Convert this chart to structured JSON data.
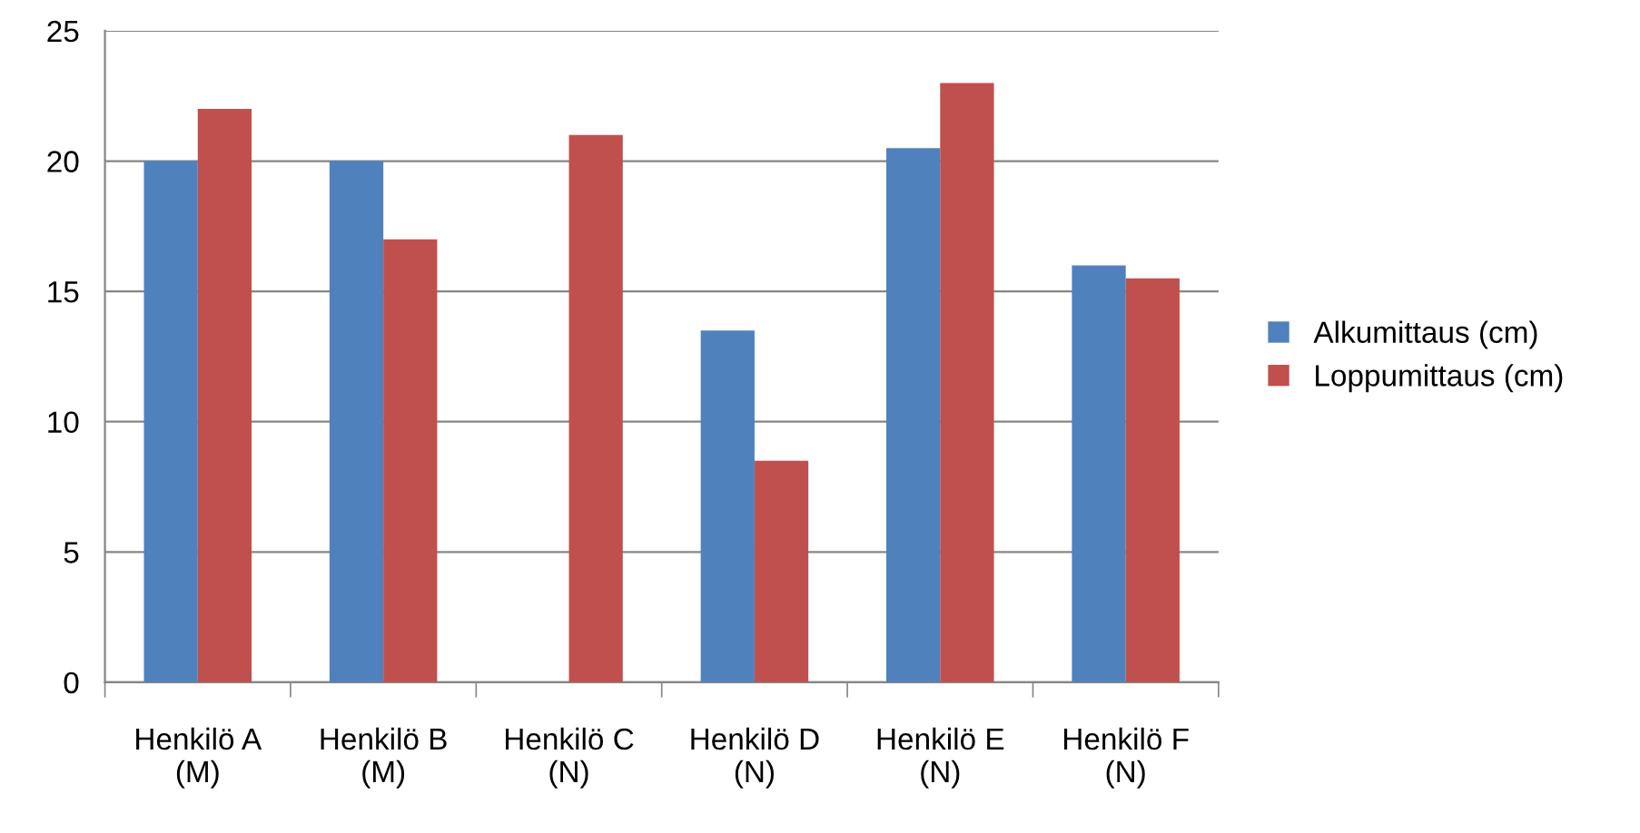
{
  "chart_data": {
    "type": "bar",
    "categories": [
      "Henkilö A\n(M)",
      "Henkilö B\n(M)",
      "Henkilö C\n(N)",
      "Henkilö D\n(N)",
      "Henkilö E\n(N)",
      "Henkilö F\n(N)"
    ],
    "series": [
      {
        "name": "Alkumittaus (cm)",
        "color": "#4f81bd",
        "values": [
          20,
          20,
          null,
          13.5,
          20.5,
          16
        ]
      },
      {
        "name": "Loppumittaus (cm)",
        "color": "#c0504d",
        "values": [
          22,
          17,
          21,
          8.5,
          23,
          15.5
        ]
      }
    ],
    "ylim": [
      0,
      25
    ],
    "yticks": [
      0,
      5,
      10,
      15,
      20,
      25
    ],
    "grid": "y",
    "legend": "right"
  }
}
